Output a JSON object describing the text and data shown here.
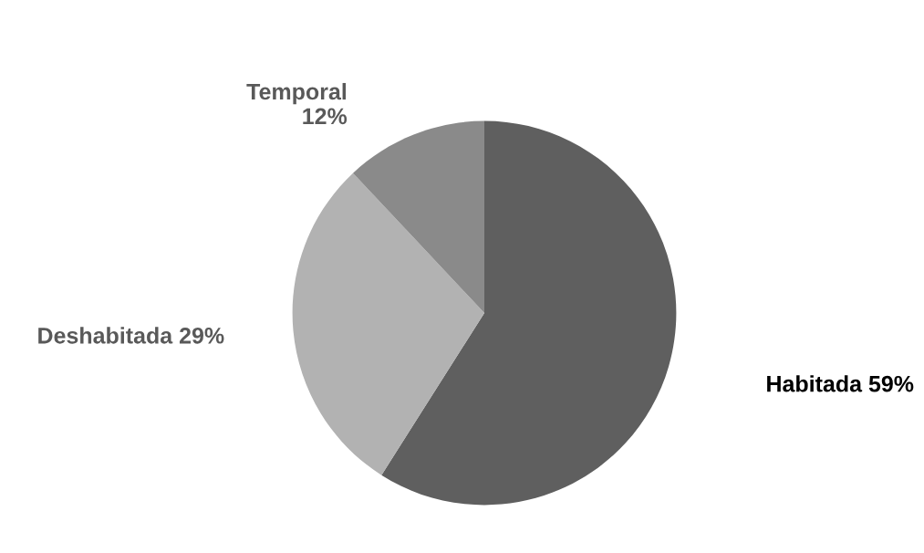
{
  "chart_data": {
    "type": "pie",
    "categories": [
      "Habitada",
      "Deshabitada",
      "Temporal"
    ],
    "values": [
      59,
      29,
      12
    ],
    "colors": [
      "#5f5f5f",
      "#b2b2b2",
      "#8a8a8a"
    ],
    "value_labels": [
      "59%",
      "29%",
      "12%"
    ]
  }
}
